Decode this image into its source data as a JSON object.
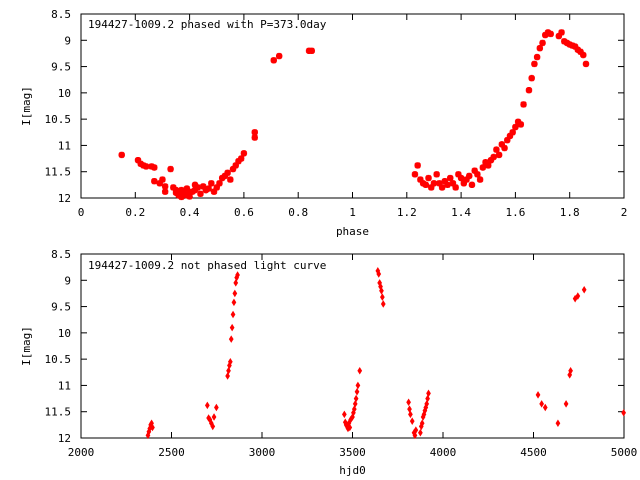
{
  "chart_data": [
    {
      "type": "scatter",
      "title": "194427-1009.2 phased with P=373.0day",
      "xlabel": "phase",
      "ylabel": "I[mag]",
      "xlim": [
        0,
        2
      ],
      "ylim": [
        12,
        8.5
      ],
      "y_inverted": true,
      "grid": false,
      "marker": "star",
      "color": "#ff0000",
      "x_ticks": [
        "0",
        "0.2",
        "0.4",
        "0.6",
        "0.8",
        "1",
        "1.2",
        "1.4",
        "1.6",
        "1.8",
        "2"
      ],
      "y_ticks": [
        "8.5",
        "9",
        "9.5",
        "10",
        "10.5",
        "11",
        "11.5",
        "12"
      ],
      "series": [
        {
          "points": [
            [
              0.15,
              11.18
            ],
            [
              0.21,
              11.28
            ],
            [
              0.22,
              11.35
            ],
            [
              0.23,
              11.38
            ],
            [
              0.24,
              11.4
            ],
            [
              0.26,
              11.4
            ],
            [
              0.27,
              11.42
            ],
            [
              0.27,
              11.68
            ],
            [
              0.29,
              11.72
            ],
            [
              0.3,
              11.65
            ],
            [
              0.31,
              11.78
            ],
            [
              0.31,
              11.88
            ],
            [
              0.33,
              11.45
            ],
            [
              0.34,
              11.8
            ],
            [
              0.35,
              11.85
            ],
            [
              0.35,
              11.9
            ],
            [
              0.36,
              11.95
            ],
            [
              0.37,
              11.85
            ],
            [
              0.37,
              11.98
            ],
            [
              0.38,
              11.92
            ],
            [
              0.39,
              11.95
            ],
            [
              0.39,
              11.82
            ],
            [
              0.4,
              11.9
            ],
            [
              0.4,
              11.97
            ],
            [
              0.41,
              11.88
            ],
            [
              0.42,
              11.75
            ],
            [
              0.42,
              11.85
            ],
            [
              0.43,
              11.8
            ],
            [
              0.44,
              11.92
            ],
            [
              0.45,
              11.78
            ],
            [
              0.46,
              11.85
            ],
            [
              0.47,
              11.82
            ],
            [
              0.48,
              11.72
            ],
            [
              0.49,
              11.88
            ],
            [
              0.5,
              11.8
            ],
            [
              0.51,
              11.72
            ],
            [
              0.52,
              11.62
            ],
            [
              0.53,
              11.58
            ],
            [
              0.54,
              11.52
            ],
            [
              0.55,
              11.65
            ],
            [
              0.56,
              11.45
            ],
            [
              0.57,
              11.38
            ],
            [
              0.58,
              11.3
            ],
            [
              0.59,
              11.25
            ],
            [
              0.6,
              11.15
            ],
            [
              0.64,
              10.75
            ],
            [
              0.64,
              10.85
            ],
            [
              0.71,
              9.38
            ],
            [
              0.73,
              9.3
            ],
            [
              0.84,
              9.2
            ],
            [
              0.85,
              9.2
            ],
            [
              1.23,
              11.55
            ],
            [
              1.24,
              11.38
            ],
            [
              1.25,
              11.65
            ],
            [
              1.26,
              11.72
            ],
            [
              1.27,
              11.75
            ],
            [
              1.28,
              11.62
            ],
            [
              1.29,
              11.8
            ],
            [
              1.3,
              11.72
            ],
            [
              1.31,
              11.55
            ],
            [
              1.32,
              11.72
            ],
            [
              1.33,
              11.8
            ],
            [
              1.34,
              11.68
            ],
            [
              1.35,
              11.75
            ],
            [
              1.36,
              11.62
            ],
            [
              1.37,
              11.72
            ],
            [
              1.38,
              11.8
            ],
            [
              1.39,
              11.55
            ],
            [
              1.4,
              11.62
            ],
            [
              1.41,
              11.72
            ],
            [
              1.42,
              11.65
            ],
            [
              1.43,
              11.58
            ],
            [
              1.44,
              11.75
            ],
            [
              1.45,
              11.48
            ],
            [
              1.46,
              11.55
            ],
            [
              1.47,
              11.65
            ],
            [
              1.48,
              11.42
            ],
            [
              1.49,
              11.32
            ],
            [
              1.5,
              11.38
            ],
            [
              1.51,
              11.28
            ],
            [
              1.52,
              11.22
            ],
            [
              1.53,
              11.08
            ],
            [
              1.54,
              11.18
            ],
            [
              1.55,
              10.98
            ],
            [
              1.56,
              11.05
            ],
            [
              1.57,
              10.9
            ],
            [
              1.58,
              10.82
            ],
            [
              1.59,
              10.75
            ],
            [
              1.6,
              10.65
            ],
            [
              1.61,
              10.55
            ],
            [
              1.62,
              10.6
            ],
            [
              1.63,
              10.22
            ],
            [
              1.65,
              9.95
            ],
            [
              1.66,
              9.72
            ],
            [
              1.67,
              9.45
            ],
            [
              1.68,
              9.32
            ],
            [
              1.69,
              9.15
            ],
            [
              1.7,
              9.05
            ],
            [
              1.71,
              8.9
            ],
            [
              1.72,
              8.85
            ],
            [
              1.73,
              8.88
            ],
            [
              1.76,
              8.92
            ],
            [
              1.77,
              8.85
            ],
            [
              1.78,
              9.02
            ],
            [
              1.79,
              9.05
            ],
            [
              1.8,
              9.08
            ],
            [
              1.81,
              9.1
            ],
            [
              1.82,
              9.12
            ],
            [
              1.83,
              9.18
            ],
            [
              1.84,
              9.22
            ],
            [
              1.85,
              9.28
            ],
            [
              1.86,
              9.45
            ]
          ]
        }
      ]
    },
    {
      "type": "scatter",
      "title": "194427-1009.2 not phased light curve",
      "xlabel": "hjd0",
      "ylabel": "I[mag]",
      "xlim": [
        2000,
        5000
      ],
      "ylim": [
        12,
        8.5
      ],
      "y_inverted": true,
      "grid": false,
      "marker": "diamond",
      "color": "#ff0000",
      "x_ticks": [
        "2000",
        "2500",
        "3000",
        "3500",
        "4000",
        "4500",
        "5000"
      ],
      "y_ticks": [
        "8.5",
        "9",
        "9.5",
        "10",
        "10.5",
        "11",
        "11.5",
        "12"
      ],
      "series": [
        {
          "points": [
            [
              2370,
              11.95
            ],
            [
              2375,
              11.88
            ],
            [
              2380,
              11.82
            ],
            [
              2385,
              11.75
            ],
            [
              2390,
              11.72
            ],
            [
              2395,
              11.8
            ],
            [
              2698,
              11.38
            ],
            [
              2705,
              11.62
            ],
            [
              2712,
              11.65
            ],
            [
              2720,
              11.72
            ],
            [
              2728,
              11.78
            ],
            [
              2735,
              11.6
            ],
            [
              2748,
              11.42
            ],
            [
              2810,
              10.82
            ],
            [
              2815,
              10.72
            ],
            [
              2820,
              10.62
            ],
            [
              2825,
              10.55
            ],
            [
              2830,
              10.12
            ],
            [
              2835,
              9.9
            ],
            [
              2840,
              9.65
            ],
            [
              2845,
              9.42
            ],
            [
              2850,
              9.25
            ],
            [
              2855,
              9.05
            ],
            [
              2860,
              8.95
            ],
            [
              2865,
              8.9
            ],
            [
              3455,
              11.55
            ],
            [
              3460,
              11.7
            ],
            [
              3465,
              11.75
            ],
            [
              3470,
              11.78
            ],
            [
              3475,
              11.82
            ],
            [
              3480,
              11.72
            ],
            [
              3485,
              11.8
            ],
            [
              3490,
              11.65
            ],
            [
              3500,
              11.6
            ],
            [
              3505,
              11.52
            ],
            [
              3510,
              11.45
            ],
            [
              3515,
              11.35
            ],
            [
              3520,
              11.25
            ],
            [
              3525,
              11.12
            ],
            [
              3530,
              11.0
            ],
            [
              3540,
              10.72
            ],
            [
              3640,
              8.82
            ],
            [
              3645,
              8.88
            ],
            [
              3650,
              9.05
            ],
            [
              3655,
              9.12
            ],
            [
              3660,
              9.2
            ],
            [
              3665,
              9.32
            ],
            [
              3670,
              9.45
            ],
            [
              3810,
              11.32
            ],
            [
              3815,
              11.45
            ],
            [
              3820,
              11.55
            ],
            [
              3830,
              11.68
            ],
            [
              3840,
              11.9
            ],
            [
              3845,
              11.95
            ],
            [
              3850,
              11.85
            ],
            [
              3875,
              11.9
            ],
            [
              3880,
              11.78
            ],
            [
              3885,
              11.72
            ],
            [
              3890,
              11.6
            ],
            [
              3895,
              11.55
            ],
            [
              3900,
              11.48
            ],
            [
              3905,
              11.42
            ],
            [
              3910,
              11.35
            ],
            [
              3915,
              11.25
            ],
            [
              3920,
              11.15
            ],
            [
              4525,
              11.18
            ],
            [
              4545,
              11.35
            ],
            [
              4565,
              11.42
            ],
            [
              4635,
              11.72
            ],
            [
              4680,
              11.35
            ],
            [
              4700,
              10.8
            ],
            [
              4705,
              10.72
            ],
            [
              4730,
              9.35
            ],
            [
              4745,
              9.3
            ],
            [
              4780,
              9.18
            ],
            [
              4998,
              11.52
            ]
          ]
        }
      ]
    }
  ]
}
